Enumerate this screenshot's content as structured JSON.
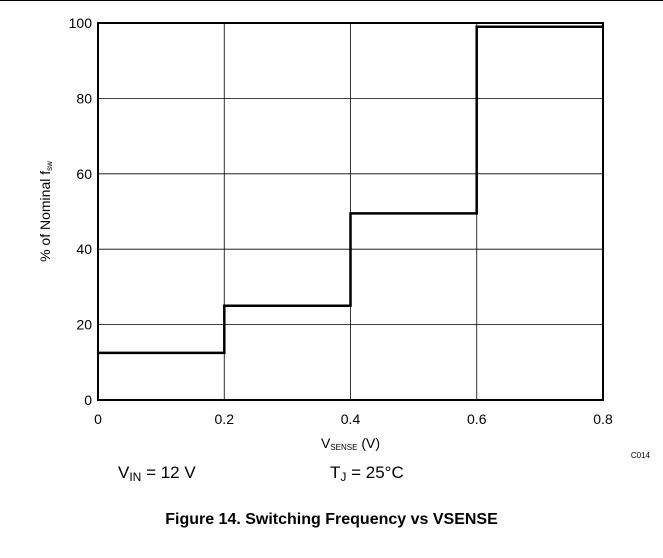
{
  "chart_data": {
    "type": "line",
    "x": [
      0,
      0.2,
      0.2,
      0.4,
      0.4,
      0.6,
      0.6,
      0.8
    ],
    "series": [
      {
        "values": [
          12.5,
          12.5,
          25,
          25,
          49.5,
          49.5,
          99,
          99
        ]
      }
    ],
    "xlim": [
      0,
      0.8
    ],
    "ylim": [
      0,
      100
    ],
    "xticks": [
      "0",
      "0.2",
      "0.4",
      "0.6",
      "0.8"
    ],
    "yticks": [
      "0",
      "20",
      "40",
      "60",
      "80",
      "100"
    ],
    "xlabel_main": "V",
    "xlabel_sub": "SENSE",
    "xlabel_unit": " (V)",
    "ylabel_main": "% of Nominal f",
    "ylabel_sub": "sw",
    "grid": true,
    "code": "C014"
  },
  "conditions": {
    "vin_main": "V",
    "vin_sub": "IN",
    "vin_value": " = 12 V",
    "tj_main": "T",
    "tj_sub": "J",
    "tj_value": " = 25°C"
  },
  "caption": "Figure 14. Switching Frequency vs VSENSE"
}
